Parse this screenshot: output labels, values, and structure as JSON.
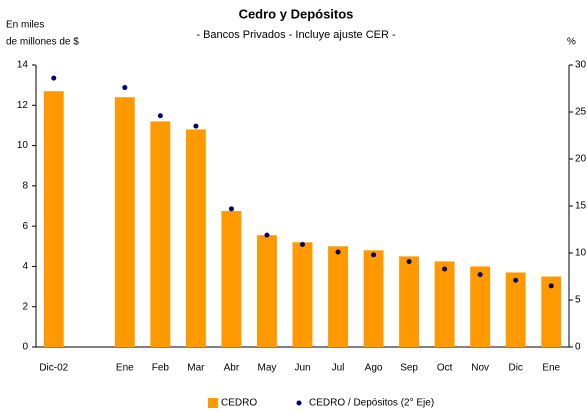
{
  "chart_data": {
    "type": "bar",
    "title": "Cedro y Depósitos",
    "subtitle": "- Bancos Privados - Incluye ajuste CER -",
    "ylabel": [
      "En miles",
      "de millones de $"
    ],
    "y2label": "%",
    "categories": [
      "Dic-02",
      null,
      "Ene",
      "Feb",
      "Mar",
      "Abr",
      "May",
      "Jun",
      "Jul",
      "Ago",
      "Sep",
      "Oct",
      "Nov",
      "Dic",
      "Ene"
    ],
    "series": [
      {
        "name": "CEDRO",
        "type": "bar",
        "color": "#ff9900",
        "values": [
          12.7,
          null,
          12.4,
          11.2,
          10.8,
          6.75,
          5.55,
          5.2,
          5.0,
          4.8,
          4.5,
          4.25,
          4.0,
          3.7,
          3.5
        ]
      },
      {
        "name": "CEDRO / Depósitos (2° Eje)",
        "type": "scatter",
        "axis": "y2",
        "color": "#000066",
        "values": [
          28.6,
          null,
          27.6,
          24.6,
          23.5,
          14.7,
          11.9,
          10.9,
          10.1,
          9.8,
          9.1,
          8.3,
          7.7,
          7.1,
          6.5
        ]
      }
    ],
    "ylim": [
      0,
      14
    ],
    "yticks": [
      0,
      2,
      4,
      6,
      8,
      10,
      12,
      14
    ],
    "y2lim": [
      0,
      30
    ],
    "y2ticks": [
      0,
      5,
      10,
      15,
      20,
      25,
      30
    ]
  }
}
